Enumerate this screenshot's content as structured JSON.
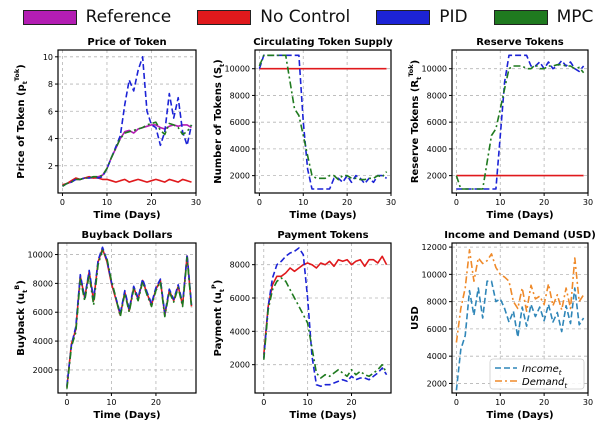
{
  "legend": [
    {
      "label": "Reference",
      "color": "#b31db3"
    },
    {
      "label": "No Control",
      "color": "#e0191c"
    },
    {
      "label": "PID",
      "color": "#1c23d6"
    },
    {
      "label": "MPC",
      "color": "#1f7a1f"
    }
  ],
  "colors": {
    "reference": "#b31db3",
    "no_control": "#e0191c",
    "pid": "#1c23d6",
    "mpc": "#1f7a1f",
    "income": "#2f86b8",
    "demand": "#ef8a2a"
  },
  "chart_data": [
    {
      "type": "line",
      "title": "Price of Token",
      "xlabel": "Time (Days)",
      "ylabel": "Price of Token (p_t^Tok)",
      "ylabel_parts": {
        "main": "Price of Token (p",
        "sub": "t",
        "sup": "Tok",
        "close": ")"
      },
      "xlim": [
        -1,
        30
      ],
      "ylim": [
        0,
        10.5
      ],
      "xticks": [
        0,
        10,
        20,
        30
      ],
      "yticks": [
        2,
        4,
        6,
        8,
        10
      ],
      "grid": true,
      "x": [
        0,
        1,
        2,
        3,
        4,
        5,
        6,
        7,
        8,
        9,
        10,
        11,
        12,
        13,
        14,
        15,
        16,
        17,
        18,
        19,
        20,
        21,
        22,
        23,
        24,
        25,
        26,
        27,
        28,
        29
      ],
      "series": [
        {
          "key": "reference",
          "values": [
            0.5,
            0.7,
            0.8,
            1.0,
            1.0,
            1.1,
            1.1,
            1.1,
            1.2,
            1.3,
            1.8,
            2.6,
            3.3,
            4.0,
            4.5,
            4.6,
            4.4,
            4.7,
            4.8,
            4.9,
            5.0,
            5.0,
            4.8,
            4.7,
            4.9,
            5.0,
            4.9,
            5.0,
            5.0,
            4.8
          ],
          "dash": "solid"
        },
        {
          "key": "no_control",
          "values": [
            0.6,
            0.7,
            0.9,
            1.1,
            1.0,
            1.1,
            1.2,
            1.1,
            1.1,
            1.0,
            1.0,
            0.9,
            0.8,
            0.9,
            1.0,
            0.8,
            0.9,
            1.0,
            0.9,
            0.8,
            0.9,
            1.0,
            0.9,
            0.8,
            1.0,
            0.9,
            0.8,
            1.0,
            0.9,
            0.8
          ],
          "dash": "solid"
        },
        {
          "key": "pid",
          "values": [
            0.5,
            0.7,
            0.8,
            1.0,
            1.0,
            1.1,
            1.1,
            1.2,
            1.1,
            1.2,
            1.8,
            2.6,
            3.4,
            4.2,
            6.5,
            8.3,
            7.5,
            9.0,
            10.0,
            6.0,
            5.0,
            4.8,
            3.5,
            4.5,
            7.3,
            5.5,
            7.0,
            4.5,
            3.5,
            5.0
          ],
          "dash": "dash"
        },
        {
          "key": "mpc",
          "values": [
            0.5,
            0.7,
            0.8,
            1.0,
            1.0,
            1.1,
            1.1,
            1.2,
            1.2,
            1.3,
            1.8,
            2.6,
            3.3,
            4.0,
            4.4,
            4.5,
            4.6,
            4.7,
            4.8,
            5.0,
            5.1,
            5.2,
            4.6,
            4.3,
            5.1,
            5.0,
            4.8,
            4.3,
            4.5,
            5.0
          ],
          "dash": "dashdot"
        }
      ]
    },
    {
      "type": "line",
      "title": "Circulating Token Supply",
      "xlabel": "Time (Days)",
      "ylabel": "Number of Tokens (S_t)",
      "ylabel_parts": {
        "main": "Number of Tokens (S",
        "sub": "t",
        "sup": "",
        "close": ")"
      },
      "xlim": [
        -1,
        30
      ],
      "ylim": [
        700,
        11400
      ],
      "xticks": [
        0,
        10,
        20,
        30
      ],
      "yticks": [
        2000,
        4000,
        6000,
        8000,
        10000
      ],
      "grid": true,
      "x": [
        0,
        1,
        2,
        3,
        4,
        5,
        6,
        7,
        8,
        9,
        10,
        11,
        12,
        13,
        14,
        15,
        16,
        17,
        18,
        19,
        20,
        21,
        22,
        23,
        24,
        25,
        26,
        27,
        28,
        29
      ],
      "series": [
        {
          "key": "no_control",
          "values": [
            10000,
            10000,
            10000,
            10000,
            10000,
            10000,
            10000,
            10000,
            10000,
            10000,
            10000,
            10000,
            10000,
            10000,
            10000,
            10000,
            10000,
            10000,
            10000,
            10000,
            10000,
            10000,
            10000,
            10000,
            10000,
            10000,
            10000,
            10000,
            10000,
            10000
          ],
          "dash": "solid"
        },
        {
          "key": "pid",
          "values": [
            10000,
            11000,
            11000,
            11000,
            11000,
            11000,
            11000,
            11000,
            11000,
            11000,
            6000,
            2500,
            1000,
            1000,
            1000,
            1000,
            1000,
            1800,
            1800,
            1500,
            2000,
            1500,
            2000,
            1800,
            1400,
            1800,
            1500,
            2000,
            2000,
            1800
          ],
          "dash": "dash"
        },
        {
          "key": "mpc",
          "values": [
            10200,
            11000,
            11000,
            11000,
            11000,
            11000,
            11000,
            9000,
            7000,
            6500,
            5000,
            3500,
            2000,
            1800,
            1800,
            1800,
            2000,
            2000,
            1700,
            2000,
            2000,
            1800,
            1800,
            1700,
            1700,
            1800,
            1800,
            2000,
            1900,
            2300
          ],
          "dash": "dashdot"
        }
      ]
    },
    {
      "type": "line",
      "title": "Reserve Tokens",
      "xlabel": "Time (Days)",
      "ylabel": "Reserve Tokens (R_t^Tok)",
      "ylabel_parts": {
        "main": "Reserve Tokens (R",
        "sub": "t",
        "sup": "Tok",
        "close": ")"
      },
      "xlim": [
        -1,
        30
      ],
      "ylim": [
        700,
        11400
      ],
      "xticks": [
        0,
        10,
        20,
        30
      ],
      "yticks": [
        2000,
        4000,
        6000,
        8000,
        10000
      ],
      "grid": true,
      "x": [
        0,
        1,
        2,
        3,
        4,
        5,
        6,
        7,
        8,
        9,
        10,
        11,
        12,
        13,
        14,
        15,
        16,
        17,
        18,
        19,
        20,
        21,
        22,
        23,
        24,
        25,
        26,
        27,
        28,
        29
      ],
      "series": [
        {
          "key": "no_control",
          "values": [
            2000,
            2000,
            2000,
            2000,
            2000,
            2000,
            2000,
            2000,
            2000,
            2000,
            2000,
            2000,
            2000,
            2000,
            2000,
            2000,
            2000,
            2000,
            2000,
            2000,
            2000,
            2000,
            2000,
            2000,
            2000,
            2000,
            2000,
            2000,
            2000,
            2000
          ],
          "dash": "solid"
        },
        {
          "key": "pid",
          "values": [
            1000,
            1000,
            1000,
            1000,
            1000,
            1000,
            1000,
            1000,
            1000,
            1000,
            5000,
            9000,
            11000,
            11000,
            11000,
            11000,
            11000,
            10200,
            10200,
            10500,
            10000,
            10500,
            10000,
            10200,
            10600,
            10200,
            10500,
            10000,
            9800,
            10200
          ],
          "dash": "dash"
        },
        {
          "key": "mpc",
          "values": [
            2000,
            1000,
            1000,
            1000,
            1000,
            1000,
            1000,
            3000,
            5000,
            5500,
            7000,
            8500,
            10000,
            10200,
            10200,
            10200,
            10000,
            10000,
            10300,
            10000,
            10000,
            10200,
            10200,
            10300,
            10300,
            10200,
            10200,
            10000,
            10100,
            9700
          ],
          "dash": "dashdot"
        }
      ]
    },
    {
      "type": "line",
      "title": "Buyback Dollars",
      "xlabel": "Time (Days)",
      "ylabel": "Buyback (u_t^B)",
      "ylabel_parts": {
        "main": "Buyback (u",
        "sub": "t",
        "sup": "B",
        "close": ")"
      },
      "xlim": [
        -2,
        29
      ],
      "ylim": [
        400,
        10800
      ],
      "xticks": [
        0,
        10,
        20
      ],
      "yticks": [
        2000,
        4000,
        6000,
        8000,
        10000
      ],
      "grid": true,
      "x": [
        0,
        1,
        2,
        3,
        4,
        5,
        6,
        7,
        8,
        9,
        10,
        11,
        12,
        13,
        14,
        15,
        16,
        17,
        18,
        19,
        20,
        21,
        22,
        23,
        24,
        25,
        26,
        27,
        28
      ],
      "series": [
        {
          "key": "no_control",
          "values": [
            800,
            3800,
            4800,
            8500,
            7000,
            8800,
            6800,
            9500,
            10400,
            9500,
            8000,
            6900,
            5800,
            7400,
            6100,
            7700,
            6900,
            8200,
            7300,
            6500,
            7600,
            8200,
            5800,
            7500,
            6800,
            7800,
            6500,
            9900,
            6400
          ],
          "dash": "solid"
        },
        {
          "key": "pid",
          "values": [
            900,
            3700,
            5000,
            8600,
            7000,
            8900,
            6900,
            9600,
            10500,
            9600,
            8100,
            7000,
            5900,
            7500,
            6200,
            7800,
            7000,
            8300,
            7400,
            6600,
            7700,
            8300,
            5900,
            7600,
            6900,
            7900,
            6600,
            10000,
            6500
          ],
          "dash": "dash"
        },
        {
          "key": "mpc",
          "values": [
            700,
            3600,
            4600,
            8300,
            6800,
            8600,
            6500,
            9300,
            10300,
            9700,
            8200,
            7000,
            5700,
            7300,
            6000,
            7600,
            6800,
            8100,
            7200,
            6400,
            7500,
            8100,
            5700,
            7400,
            6700,
            7700,
            6400,
            9800,
            6300
          ],
          "dash": "dashdot"
        }
      ]
    },
    {
      "type": "line",
      "title": "Payment Tokens",
      "xlabel": "Time (Days)",
      "ylabel": "Payment (u_t^P)",
      "ylabel_parts": {
        "main": "Payment (u",
        "sub": "t",
        "sup": "P",
        "close": ")"
      },
      "xlim": [
        -2,
        29
      ],
      "ylim": [
        300,
        9300
      ],
      "xticks": [
        0,
        10,
        20
      ],
      "yticks": [
        2000,
        4000,
        6000,
        8000
      ],
      "grid": true,
      "x": [
        0,
        1,
        2,
        3,
        4,
        5,
        6,
        7,
        8,
        9,
        10,
        11,
        12,
        13,
        14,
        15,
        16,
        17,
        18,
        19,
        20,
        21,
        22,
        23,
        24,
        25,
        26,
        27,
        28
      ],
      "series": [
        {
          "key": "no_control",
          "values": [
            2600,
            5500,
            6800,
            7300,
            7300,
            7500,
            7800,
            7600,
            7800,
            8000,
            8100,
            8000,
            7800,
            8100,
            8000,
            8200,
            7900,
            8300,
            8200,
            8300,
            8000,
            8200,
            8300,
            7900,
            8300,
            8300,
            8100,
            8500,
            8000
          ],
          "dash": "solid"
        },
        {
          "key": "pid",
          "values": [
            2400,
            5500,
            7200,
            8000,
            8200,
            8500,
            8700,
            8800,
            9000,
            8600,
            6000,
            2500,
            800,
            700,
            800,
            800,
            900,
            1000,
            1100,
            1000,
            1300,
            1100,
            1200,
            1200,
            1100,
            1300,
            1500,
            1800,
            1400
          ],
          "dash": "dash"
        },
        {
          "key": "mpc",
          "values": [
            2300,
            5300,
            6500,
            7000,
            7200,
            7000,
            6500,
            6000,
            5500,
            5000,
            4500,
            3000,
            1500,
            1200,
            1400,
            1300,
            1500,
            1700,
            1500,
            1300,
            1700,
            1400,
            1600,
            1400,
            1300,
            1500,
            1700,
            2000,
            1500
          ],
          "dash": "dashdot"
        }
      ]
    },
    {
      "type": "line",
      "title": "Income and Demand (USD)",
      "xlabel": "Time (Days)",
      "ylabel": "USD",
      "ylabel_parts": {
        "main": "USD",
        "sub": "",
        "sup": "",
        "close": ""
      },
      "xlim": [
        -1,
        30
      ],
      "ylim": [
        1300,
        12300
      ],
      "xticks": [
        0,
        10,
        20,
        30
      ],
      "yticks": [
        2000,
        4000,
        6000,
        8000,
        10000,
        12000
      ],
      "grid": true,
      "legend_position": "lower right",
      "legend": [
        {
          "key": "income",
          "label_main": "Income",
          "label_sub": "t"
        },
        {
          "key": "demand",
          "label_main": "Demand",
          "label_sub": "t"
        }
      ],
      "x": [
        0,
        1,
        2,
        3,
        4,
        5,
        6,
        7,
        8,
        9,
        10,
        11,
        12,
        13,
        14,
        15,
        16,
        17,
        18,
        19,
        20,
        21,
        22,
        23,
        24,
        25,
        26,
        27,
        28,
        29
      ],
      "series": [
        {
          "key": "income",
          "values": [
            1500,
            4500,
            5500,
            8800,
            7000,
            9000,
            6800,
            9500,
            9500,
            8000,
            8200,
            7500,
            6500,
            7300,
            5400,
            7600,
            6200,
            7800,
            6900,
            7600,
            6600,
            7800,
            6500,
            7200,
            5800,
            7700,
            6400,
            9000,
            6300,
            6800
          ],
          "dash": "dash"
        },
        {
          "key": "demand",
          "values": [
            5000,
            7500,
            9000,
            11800,
            9500,
            11200,
            10800,
            11000,
            11500,
            10500,
            10000,
            9800,
            9500,
            8000,
            7500,
            9000,
            7300,
            9200,
            8200,
            8400,
            7800,
            9300,
            7700,
            8500,
            7400,
            9000,
            7500,
            11200,
            8000,
            8500
          ],
          "dash": "dashdot"
        }
      ]
    }
  ]
}
